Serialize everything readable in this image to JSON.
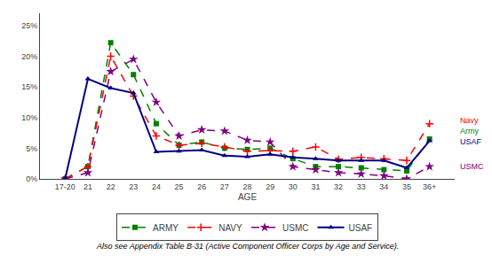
{
  "chart_data": {
    "type": "line",
    "xlabel": "AGE",
    "categories": [
      "17-20",
      "21",
      "22",
      "23",
      "24",
      "25",
      "26",
      "27",
      "28",
      "29",
      "30",
      "31",
      "32",
      "33",
      "34",
      "35",
      "36+"
    ],
    "series": [
      {
        "name": "ARMY",
        "color": "#008000",
        "marker": "square",
        "line_style": "dashed",
        "values": [
          0.0,
          0.02,
          0.222,
          0.17,
          0.09,
          0.055,
          0.06,
          0.05,
          0.048,
          0.05,
          0.033,
          0.02,
          0.02,
          0.018,
          0.015,
          0.013,
          0.065
        ]
      },
      {
        "name": "NAVY",
        "color": "#FF0000",
        "marker": "cross",
        "line_style": "dashed",
        "values": [
          0.0,
          0.02,
          0.2,
          0.135,
          0.07,
          0.055,
          0.058,
          0.052,
          0.045,
          0.046,
          0.045,
          0.052,
          0.032,
          0.035,
          0.033,
          0.03,
          0.09
        ]
      },
      {
        "name": "USMC",
        "color": "#800080",
        "marker": "star",
        "line_style": "dashed",
        "values": [
          0.0,
          0.01,
          0.175,
          0.195,
          0.125,
          0.07,
          0.08,
          0.078,
          0.063,
          0.06,
          0.02,
          0.015,
          0.01,
          0.008,
          0.005,
          0.0,
          0.02
        ]
      },
      {
        "name": "USAF",
        "color": "#000080",
        "marker": "triangle",
        "line_style": "solid",
        "values": [
          0.0,
          0.163,
          0.148,
          0.14,
          0.044,
          0.045,
          0.047,
          0.038,
          0.036,
          0.04,
          0.035,
          0.033,
          0.03,
          0.03,
          0.03,
          0.018,
          0.062
        ]
      }
    ],
    "ylim": [
      0,
      0.27
    ],
    "yticks": [
      {
        "value": 0.0,
        "label": "0%"
      },
      {
        "value": 0.05,
        "label": "5%"
      },
      {
        "value": 0.1,
        "label": "10%"
      },
      {
        "value": 0.15,
        "label": "15%"
      },
      {
        "value": 0.2,
        "label": "20%"
      },
      {
        "value": 0.25,
        "label": "25%"
      }
    ],
    "annotations": [
      {
        "text": "Navy",
        "y": 0.09,
        "color": "#FF0000"
      },
      {
        "text": "Army",
        "y": 0.068,
        "color": "#008000"
      },
      {
        "text": "USAF",
        "y": 0.061,
        "color": "#000080"
      },
      {
        "text": "USMC",
        "y": 0.02,
        "color": "#800080"
      }
    ],
    "footnote": "Also see Appendix Table B-31 (Active Component Officer Corps by Age and Service).",
    "grid": false,
    "legend": "bottom"
  }
}
